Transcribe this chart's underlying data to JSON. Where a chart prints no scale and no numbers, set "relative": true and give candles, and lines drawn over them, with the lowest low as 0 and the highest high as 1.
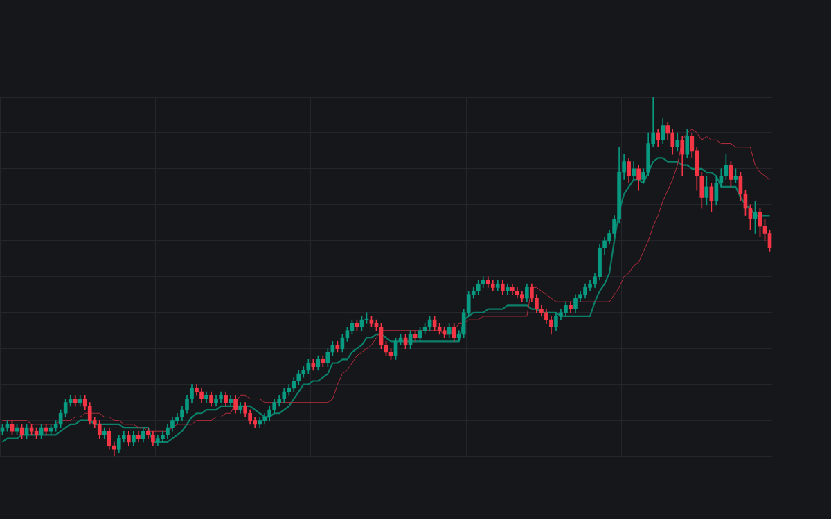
{
  "chart_data": {
    "type": "candlestick",
    "relative": true,
    "grid": true,
    "legend": false,
    "marker": "none",
    "line_style": "solid",
    "categories": [
      null,
      null,
      null,
      null,
      null,
      null,
      null,
      null,
      null,
      null,
      null,
      null,
      null,
      null,
      null,
      null,
      null,
      null,
      null,
      null,
      null,
      null,
      null,
      null,
      null,
      null,
      null,
      null,
      null,
      null,
      null,
      null,
      null,
      null,
      null,
      null,
      null,
      null,
      null,
      null,
      null,
      null,
      null,
      null,
      null,
      null,
      null,
      null,
      null,
      null,
      null,
      null,
      null,
      null,
      null,
      null,
      null,
      null,
      null,
      null,
      null,
      null,
      null,
      null,
      null,
      null,
      null,
      null,
      null,
      null,
      null,
      null,
      null,
      null,
      null,
      null,
      null,
      null,
      null,
      null,
      null,
      null,
      null,
      null,
      null,
      null,
      null,
      null,
      null,
      null,
      null,
      null,
      null,
      null,
      null,
      null,
      null,
      null,
      null,
      null,
      null,
      null,
      null,
      null,
      null,
      null,
      null,
      null,
      null,
      null,
      null,
      null,
      null,
      null,
      null,
      null,
      null,
      null,
      null,
      null,
      null,
      null,
      null,
      null,
      null,
      null,
      null,
      null,
      null,
      null,
      null,
      null,
      null,
      null,
      null,
      null,
      null,
      null,
      null,
      null,
      null,
      null,
      null,
      null,
      null,
      null,
      null,
      null,
      null,
      null,
      null,
      null,
      null,
      null,
      null,
      null,
      null,
      null,
      null
    ],
    "ohlc": [
      [
        0.07,
        0.09,
        0.06,
        0.08
      ],
      [
        0.08,
        0.1,
        0.07,
        0.09
      ],
      [
        0.09,
        0.1,
        0.06,
        0.07
      ],
      [
        0.07,
        0.09,
        0.06,
        0.08
      ],
      [
        0.08,
        0.09,
        0.05,
        0.06
      ],
      [
        0.06,
        0.09,
        0.05,
        0.08
      ],
      [
        0.08,
        0.09,
        0.06,
        0.07
      ],
      [
        0.07,
        0.08,
        0.05,
        0.06
      ],
      [
        0.06,
        0.09,
        0.05,
        0.08
      ],
      [
        0.08,
        0.09,
        0.06,
        0.07
      ],
      [
        0.07,
        0.09,
        0.06,
        0.08
      ],
      [
        0.08,
        0.1,
        0.07,
        0.09
      ],
      [
        0.09,
        0.13,
        0.08,
        0.12
      ],
      [
        0.12,
        0.16,
        0.11,
        0.15
      ],
      [
        0.15,
        0.17,
        0.14,
        0.16
      ],
      [
        0.16,
        0.17,
        0.14,
        0.15
      ],
      [
        0.15,
        0.17,
        0.14,
        0.16
      ],
      [
        0.16,
        0.17,
        0.13,
        0.14
      ],
      [
        0.14,
        0.15,
        0.09,
        0.1
      ],
      [
        0.1,
        0.11,
        0.08,
        0.09
      ],
      [
        0.09,
        0.1,
        0.05,
        0.06
      ],
      [
        0.06,
        0.08,
        0.05,
        0.07
      ],
      [
        0.07,
        0.08,
        0.02,
        0.03
      ],
      [
        0.03,
        0.04,
        0.0,
        0.02
      ],
      [
        0.02,
        0.06,
        0.01,
        0.05
      ],
      [
        0.05,
        0.07,
        0.04,
        0.06
      ],
      [
        0.06,
        0.07,
        0.03,
        0.04
      ],
      [
        0.04,
        0.07,
        0.03,
        0.06
      ],
      [
        0.06,
        0.07,
        0.04,
        0.05
      ],
      [
        0.05,
        0.08,
        0.04,
        0.07
      ],
      [
        0.07,
        0.08,
        0.05,
        0.06
      ],
      [
        0.06,
        0.07,
        0.03,
        0.04
      ],
      [
        0.04,
        0.06,
        0.03,
        0.05
      ],
      [
        0.05,
        0.07,
        0.04,
        0.06
      ],
      [
        0.06,
        0.09,
        0.05,
        0.08
      ],
      [
        0.08,
        0.11,
        0.07,
        0.1
      ],
      [
        0.1,
        0.12,
        0.09,
        0.11
      ],
      [
        0.11,
        0.14,
        0.1,
        0.13
      ],
      [
        0.13,
        0.17,
        0.12,
        0.16
      ],
      [
        0.16,
        0.2,
        0.15,
        0.19
      ],
      [
        0.19,
        0.2,
        0.17,
        0.18
      ],
      [
        0.18,
        0.19,
        0.15,
        0.16
      ],
      [
        0.16,
        0.18,
        0.15,
        0.17
      ],
      [
        0.17,
        0.18,
        0.14,
        0.15
      ],
      [
        0.15,
        0.17,
        0.14,
        0.16
      ],
      [
        0.16,
        0.18,
        0.15,
        0.17
      ],
      [
        0.17,
        0.18,
        0.14,
        0.15
      ],
      [
        0.15,
        0.17,
        0.14,
        0.16
      ],
      [
        0.16,
        0.17,
        0.12,
        0.13
      ],
      [
        0.13,
        0.15,
        0.12,
        0.14
      ],
      [
        0.14,
        0.15,
        0.11,
        0.12
      ],
      [
        0.12,
        0.13,
        0.09,
        0.1
      ],
      [
        0.1,
        0.11,
        0.08,
        0.09
      ],
      [
        0.09,
        0.11,
        0.08,
        0.1
      ],
      [
        0.1,
        0.12,
        0.09,
        0.11
      ],
      [
        0.11,
        0.14,
        0.1,
        0.13
      ],
      [
        0.13,
        0.16,
        0.12,
        0.15
      ],
      [
        0.15,
        0.17,
        0.14,
        0.16
      ],
      [
        0.16,
        0.19,
        0.15,
        0.18
      ],
      [
        0.18,
        0.2,
        0.17,
        0.19
      ],
      [
        0.19,
        0.22,
        0.18,
        0.21
      ],
      [
        0.21,
        0.24,
        0.2,
        0.23
      ],
      [
        0.23,
        0.25,
        0.22,
        0.24
      ],
      [
        0.24,
        0.27,
        0.23,
        0.26
      ],
      [
        0.26,
        0.27,
        0.24,
        0.25
      ],
      [
        0.25,
        0.28,
        0.24,
        0.27
      ],
      [
        0.27,
        0.28,
        0.25,
        0.26
      ],
      [
        0.26,
        0.3,
        0.25,
        0.29
      ],
      [
        0.29,
        0.32,
        0.28,
        0.31
      ],
      [
        0.31,
        0.32,
        0.29,
        0.3
      ],
      [
        0.3,
        0.34,
        0.29,
        0.33
      ],
      [
        0.33,
        0.36,
        0.32,
        0.35
      ],
      [
        0.35,
        0.38,
        0.34,
        0.37
      ],
      [
        0.37,
        0.38,
        0.35,
        0.36
      ],
      [
        0.36,
        0.39,
        0.35,
        0.38
      ],
      [
        0.38,
        0.4,
        0.37,
        0.38
      ],
      [
        0.38,
        0.39,
        0.36,
        0.37
      ],
      [
        0.37,
        0.38,
        0.35,
        0.36
      ],
      [
        0.36,
        0.37,
        0.3,
        0.31
      ],
      [
        0.31,
        0.32,
        0.28,
        0.29
      ],
      [
        0.29,
        0.3,
        0.27,
        0.28
      ],
      [
        0.28,
        0.33,
        0.27,
        0.32
      ],
      [
        0.32,
        0.34,
        0.31,
        0.33
      ],
      [
        0.33,
        0.34,
        0.3,
        0.31
      ],
      [
        0.31,
        0.35,
        0.3,
        0.34
      ],
      [
        0.34,
        0.35,
        0.32,
        0.33
      ],
      [
        0.33,
        0.36,
        0.32,
        0.35
      ],
      [
        0.35,
        0.37,
        0.34,
        0.36
      ],
      [
        0.36,
        0.39,
        0.35,
        0.38
      ],
      [
        0.38,
        0.39,
        0.35,
        0.36
      ],
      [
        0.36,
        0.37,
        0.34,
        0.35
      ],
      [
        0.35,
        0.36,
        0.33,
        0.34
      ],
      [
        0.34,
        0.37,
        0.33,
        0.36
      ],
      [
        0.36,
        0.37,
        0.32,
        0.33
      ],
      [
        0.33,
        0.35,
        0.32,
        0.34
      ],
      [
        0.34,
        0.41,
        0.33,
        0.4
      ],
      [
        0.4,
        0.46,
        0.39,
        0.45
      ],
      [
        0.45,
        0.47,
        0.44,
        0.46
      ],
      [
        0.46,
        0.49,
        0.45,
        0.48
      ],
      [
        0.48,
        0.5,
        0.47,
        0.49
      ],
      [
        0.49,
        0.5,
        0.47,
        0.48
      ],
      [
        0.48,
        0.49,
        0.46,
        0.47
      ],
      [
        0.47,
        0.49,
        0.46,
        0.48
      ],
      [
        0.48,
        0.49,
        0.45,
        0.46
      ],
      [
        0.46,
        0.48,
        0.45,
        0.47
      ],
      [
        0.47,
        0.48,
        0.45,
        0.46
      ],
      [
        0.46,
        0.47,
        0.44,
        0.45
      ],
      [
        0.45,
        0.46,
        0.43,
        0.44
      ],
      [
        0.44,
        0.48,
        0.43,
        0.47
      ],
      [
        0.47,
        0.48,
        0.43,
        0.44
      ],
      [
        0.44,
        0.45,
        0.4,
        0.41
      ],
      [
        0.41,
        0.42,
        0.39,
        0.4
      ],
      [
        0.4,
        0.41,
        0.37,
        0.38
      ],
      [
        0.38,
        0.39,
        0.34,
        0.36
      ],
      [
        0.36,
        0.4,
        0.35,
        0.39
      ],
      [
        0.39,
        0.41,
        0.38,
        0.4
      ],
      [
        0.4,
        0.43,
        0.39,
        0.42
      ],
      [
        0.42,
        0.43,
        0.4,
        0.41
      ],
      [
        0.41,
        0.45,
        0.4,
        0.44
      ],
      [
        0.44,
        0.46,
        0.43,
        0.45
      ],
      [
        0.45,
        0.48,
        0.44,
        0.47
      ],
      [
        0.47,
        0.49,
        0.46,
        0.48
      ],
      [
        0.48,
        0.51,
        0.47,
        0.5
      ],
      [
        0.5,
        0.59,
        0.49,
        0.58
      ],
      [
        0.58,
        0.61,
        0.56,
        0.6
      ],
      [
        0.6,
        0.63,
        0.59,
        0.62
      ],
      [
        0.62,
        0.67,
        0.61,
        0.66
      ],
      [
        0.66,
        0.86,
        0.65,
        0.79
      ],
      [
        0.79,
        0.84,
        0.77,
        0.82
      ],
      [
        0.82,
        0.83,
        0.76,
        0.78
      ],
      [
        0.78,
        0.82,
        0.77,
        0.8
      ],
      [
        0.8,
        0.81,
        0.74,
        0.77
      ],
      [
        0.77,
        0.8,
        0.76,
        0.79
      ],
      [
        0.79,
        0.9,
        0.78,
        0.87
      ],
      [
        0.87,
        1.0,
        0.86,
        0.9
      ],
      [
        0.9,
        0.91,
        0.86,
        0.88
      ],
      [
        0.88,
        0.94,
        0.87,
        0.92
      ],
      [
        0.92,
        0.93,
        0.88,
        0.9
      ],
      [
        0.9,
        0.91,
        0.84,
        0.86
      ],
      [
        0.86,
        0.9,
        0.85,
        0.88
      ],
      [
        0.88,
        0.89,
        0.78,
        0.84
      ],
      [
        0.84,
        0.91,
        0.83,
        0.89
      ],
      [
        0.89,
        0.9,
        0.83,
        0.85
      ],
      [
        0.85,
        0.86,
        0.74,
        0.78
      ],
      [
        0.78,
        0.79,
        0.69,
        0.72
      ],
      [
        0.72,
        0.78,
        0.7,
        0.75
      ],
      [
        0.75,
        0.76,
        0.68,
        0.71
      ],
      [
        0.71,
        0.78,
        0.7,
        0.76
      ],
      [
        0.76,
        0.8,
        0.75,
        0.78
      ],
      [
        0.78,
        0.84,
        0.77,
        0.81
      ],
      [
        0.81,
        0.82,
        0.75,
        0.77
      ],
      [
        0.77,
        0.8,
        0.76,
        0.78
      ],
      [
        0.78,
        0.79,
        0.71,
        0.73
      ],
      [
        0.73,
        0.74,
        0.67,
        0.69
      ],
      [
        0.69,
        0.7,
        0.63,
        0.66
      ],
      [
        0.66,
        0.71,
        0.62,
        0.68
      ],
      [
        0.68,
        0.69,
        0.61,
        0.64
      ],
      [
        0.64,
        0.66,
        0.6,
        0.62
      ],
      [
        0.62,
        0.63,
        0.57,
        0.58
      ]
    ],
    "series": [
      {
        "type": "line",
        "color": "#b22d3b",
        "values": [
          0.1,
          0.1,
          0.1,
          0.1,
          0.1,
          0.1,
          0.09,
          0.09,
          0.09,
          0.09,
          0.09,
          0.09,
          0.1,
          0.1,
          0.1,
          0.11,
          0.11,
          0.12,
          0.12,
          0.12,
          0.12,
          0.11,
          0.11,
          0.1,
          0.1,
          0.09,
          0.09,
          0.09,
          0.08,
          0.08,
          0.07,
          0.07,
          0.07,
          0.07,
          0.07,
          0.08,
          0.09,
          0.09,
          0.09,
          0.09,
          0.1,
          0.1,
          0.1,
          0.1,
          0.11,
          0.11,
          0.12,
          0.12,
          0.15,
          0.17,
          0.17,
          0.16,
          0.16,
          0.16,
          0.15,
          0.15,
          0.15,
          0.15,
          0.15,
          0.15,
          0.15,
          0.15,
          0.15,
          0.15,
          0.15,
          0.15,
          0.15,
          0.15,
          0.16,
          0.2,
          0.23,
          0.24,
          0.26,
          0.28,
          0.29,
          0.3,
          0.31,
          0.33,
          0.35,
          0.35,
          0.35,
          0.35,
          0.35,
          0.35,
          0.35,
          0.35,
          0.35,
          0.35,
          0.35,
          0.35,
          0.35,
          0.34,
          0.34,
          0.35,
          0.37,
          0.37,
          0.38,
          0.38,
          0.38,
          0.39,
          0.39,
          0.39,
          0.39,
          0.39,
          0.39,
          0.39,
          0.39,
          0.39,
          0.39,
          0.47,
          0.47,
          0.46,
          0.45,
          0.44,
          0.43,
          0.43,
          0.43,
          0.43,
          0.43,
          0.43,
          0.43,
          0.43,
          0.43,
          0.43,
          0.43,
          0.43,
          0.45,
          0.47,
          0.5,
          0.51,
          0.53,
          0.54,
          0.57,
          0.6,
          0.64,
          0.67,
          0.71,
          0.74,
          0.77,
          0.81,
          0.88,
          0.9,
          0.91,
          0.9,
          0.88,
          0.89,
          0.88,
          0.88,
          0.87,
          0.87,
          0.87,
          0.86,
          0.86,
          0.86,
          0.86,
          0.81,
          0.79,
          0.78,
          0.77
        ]
      },
      {
        "type": "line",
        "color": "#0c7f69",
        "values": [
          0.04,
          0.05,
          0.05,
          0.05,
          0.06,
          0.06,
          0.06,
          0.06,
          0.06,
          0.06,
          0.06,
          0.06,
          0.07,
          0.08,
          0.09,
          0.09,
          0.1,
          0.1,
          0.1,
          0.09,
          0.09,
          0.09,
          0.09,
          0.09,
          0.09,
          0.08,
          0.08,
          0.08,
          0.08,
          0.08,
          0.08,
          0.04,
          0.04,
          0.04,
          0.04,
          0.05,
          0.06,
          0.07,
          0.09,
          0.11,
          0.12,
          0.12,
          0.13,
          0.13,
          0.13,
          0.14,
          0.14,
          0.14,
          0.14,
          0.14,
          0.14,
          0.14,
          0.13,
          0.12,
          0.11,
          0.11,
          0.12,
          0.12,
          0.13,
          0.14,
          0.16,
          0.18,
          0.2,
          0.2,
          0.21,
          0.21,
          0.22,
          0.23,
          0.26,
          0.26,
          0.27,
          0.27,
          0.29,
          0.3,
          0.31,
          0.33,
          0.33,
          0.34,
          0.34,
          0.33,
          0.32,
          0.32,
          0.32,
          0.32,
          0.32,
          0.32,
          0.32,
          0.32,
          0.32,
          0.32,
          0.32,
          0.32,
          0.32,
          0.32,
          0.32,
          0.38,
          0.39,
          0.4,
          0.4,
          0.4,
          0.41,
          0.41,
          0.41,
          0.41,
          0.42,
          0.42,
          0.42,
          0.42,
          0.42,
          0.41,
          0.41,
          0.4,
          0.4,
          0.4,
          0.4,
          0.39,
          0.39,
          0.39,
          0.39,
          0.39,
          0.39,
          0.39,
          0.43,
          0.46,
          0.48,
          0.51,
          0.6,
          0.68,
          0.73,
          0.75,
          0.77,
          0.77,
          0.76,
          0.79,
          0.82,
          0.83,
          0.83,
          0.82,
          0.82,
          0.82,
          0.81,
          0.81,
          0.8,
          0.8,
          0.8,
          0.79,
          0.79,
          0.78,
          0.75,
          0.75,
          0.75,
          0.75,
          0.72,
          0.7,
          0.69,
          0.67,
          0.67,
          0.67,
          0.67
        ]
      }
    ]
  }
}
